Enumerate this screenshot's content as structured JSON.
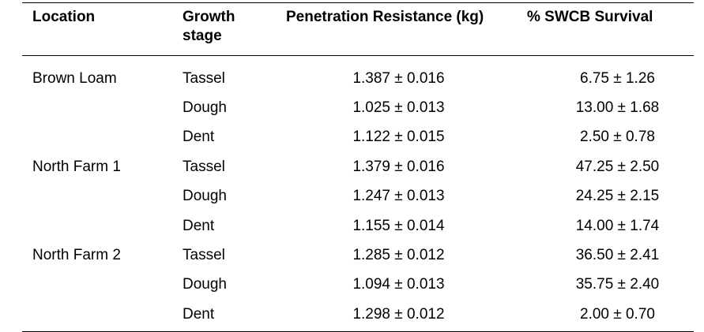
{
  "table": {
    "headers": {
      "location": "Location",
      "growth_stage_line1": "Growth",
      "growth_stage_line2": "stage",
      "penetration": "Penetration Resistance (kg)",
      "survival": "% SWCB Survival"
    },
    "rows": [
      {
        "location": "Brown Loam",
        "stage": "Tassel",
        "penetration": "1.387 ± 0.016",
        "survival": "6.75 ± 1.26"
      },
      {
        "location": "",
        "stage": "Dough",
        "penetration": "1.025 ± 0.013",
        "survival": "13.00 ± 1.68"
      },
      {
        "location": "",
        "stage": "Dent",
        "penetration": "1.122 ± 0.015",
        "survival": "2.50 ± 0.78"
      },
      {
        "location": "North Farm 1",
        "stage": "Tassel",
        "penetration": "1.379 ± 0.016",
        "survival": "47.25 ± 2.50"
      },
      {
        "location": "",
        "stage": "Dough",
        "penetration": "1.247 ± 0.013",
        "survival": "24.25 ± 2.15"
      },
      {
        "location": "",
        "stage": "Dent",
        "penetration": "1.155 ± 0.014",
        "survival": "14.00 ± 1.74"
      },
      {
        "location": "North Farm 2",
        "stage": "Tassel",
        "penetration": "1.285 ± 0.012",
        "survival": "36.50 ± 2.41"
      },
      {
        "location": "",
        "stage": "Dough",
        "penetration": "1.094 ± 0.013",
        "survival": "35.75 ± 2.40"
      },
      {
        "location": "",
        "stage": "Dent",
        "penetration": "1.298 ± 0.012",
        "survival": "2.00 ± 0.70"
      }
    ]
  }
}
